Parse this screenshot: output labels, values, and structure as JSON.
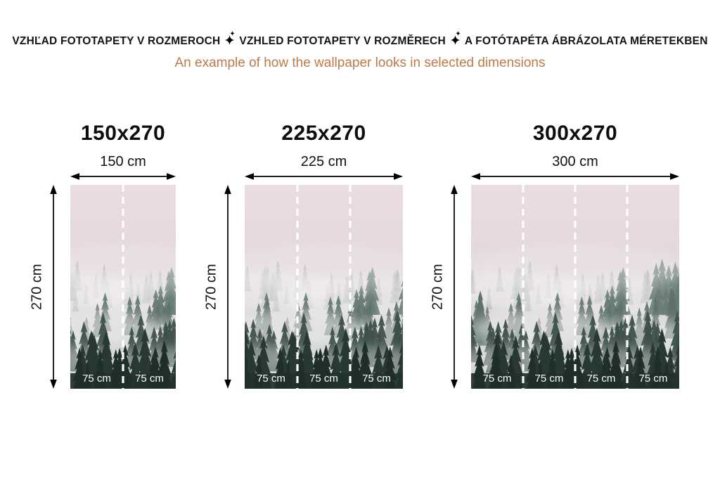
{
  "header": {
    "title_segments": [
      "VZHĽAD FOTOTAPETY V ROZMEROCH",
      "VZHLED FOTOTAPETY V ROZMĚRECH",
      "A FOTÓTAPÉTA ÁBRÁZOLATA MÉRETEKBEN"
    ],
    "subtitle": "An example of how the wallpaper looks in selected dimensions",
    "title_color": "#141414",
    "subtitle_color": "#c07a48"
  },
  "panels": [
    {
      "title": "150x270",
      "width_label": "150 cm",
      "height_label": "270 cm",
      "strips": [
        "75 cm",
        "75 cm"
      ]
    },
    {
      "title": "225x270",
      "width_label": "225 cm",
      "height_label": "270 cm",
      "strips": [
        "75 cm",
        "75 cm",
        "75 cm"
      ]
    },
    {
      "title": "300x270",
      "width_label": "300 cm",
      "height_label": "270 cm",
      "strips": [
        "75 cm",
        "75 cm",
        "75 cm",
        "75 cm"
      ]
    }
  ],
  "image": {
    "description": "misty forest wallpaper",
    "divider_color": "#ffffff",
    "label_color": "#ffffff"
  }
}
